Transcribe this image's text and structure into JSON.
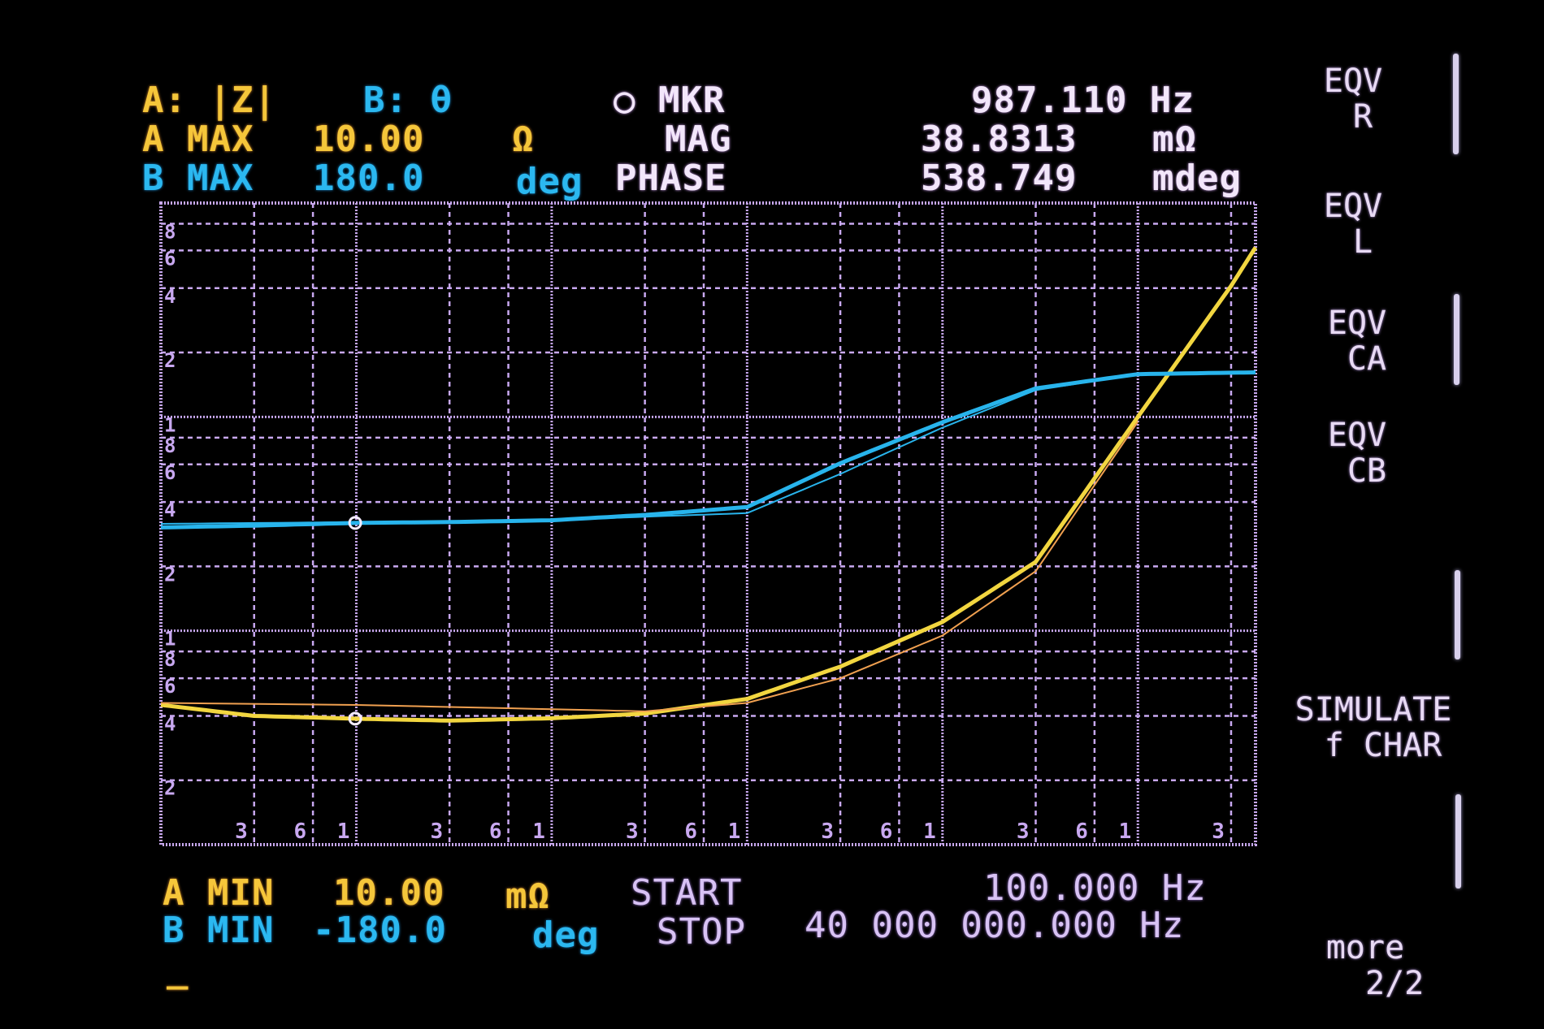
{
  "header": {
    "trace_a": "A: |Z|",
    "trace_b": "B: θ",
    "marker_label": "○ MKR",
    "marker_freq": "987.110 Hz",
    "a_max_label": "A MAX",
    "a_max_value": "10.00",
    "a_max_unit": "Ω",
    "mag_label": "MAG",
    "mag_value": "38.8313",
    "mag_unit": "mΩ",
    "b_max_label": "B MAX",
    "b_max_value": "180.0",
    "b_max_unit": "deg",
    "phase_label": "PHASE",
    "phase_value": "538.749",
    "phase_unit": "mdeg"
  },
  "footer": {
    "a_min_label": "A MIN",
    "a_min_value": "10.00",
    "a_min_unit": "mΩ",
    "start_label": "START",
    "start_value": "100.000 Hz",
    "b_min_label": "B MIN",
    "b_min_value": "-180.0",
    "b_min_unit": "deg",
    "stop_label": "STOP",
    "stop_value": "40 000 000.000 Hz",
    "cursor": "_"
  },
  "softkeys": [
    {
      "label": "EQV\n R"
    },
    {
      "label": "EQV\n L"
    },
    {
      "label": "EQV\n CA"
    },
    {
      "label": "EQV\n CB"
    },
    {
      "label": "SIMULATE\n f CHAR"
    },
    {
      "label": "more\n   2/2"
    }
  ],
  "colors": {
    "trace_a": "#f2d640",
    "trace_a_ref": "#f0a050",
    "trace_b": "#28b4ec",
    "grid": "#c8a8f0",
    "text": "#f2e6fa"
  },
  "chart_data": {
    "type": "line",
    "x_scale": "log",
    "xlim": [
      100,
      40000000
    ],
    "x_tick_labels": [
      {
        "f": 300,
        "label": "3"
      },
      {
        "f": 600,
        "label": "6"
      },
      {
        "f": 1000,
        "label": "1"
      },
      {
        "f": 3000,
        "label": "3"
      },
      {
        "f": 6000,
        "label": "6"
      },
      {
        "f": 10000,
        "label": "1"
      },
      {
        "f": 30000,
        "label": "3"
      },
      {
        "f": 60000,
        "label": "6"
      },
      {
        "f": 100000,
        "label": "1"
      },
      {
        "f": 300000,
        "label": "3"
      },
      {
        "f": 600000,
        "label": "6"
      },
      {
        "f": 1000000,
        "label": "1"
      },
      {
        "f": 3000000,
        "label": "3"
      },
      {
        "f": 6000000,
        "label": "6"
      },
      {
        "f": 10000000,
        "label": "1"
      },
      {
        "f": 30000000,
        "label": "3"
      }
    ],
    "a_axis": {
      "scale": "log",
      "ylim": [
        0.01,
        10
      ],
      "unit": "Ω"
    },
    "a_tick_labels": [
      {
        "v": 8,
        "label": "8"
      },
      {
        "v": 6,
        "label": "6"
      },
      {
        "v": 4,
        "label": "4"
      },
      {
        "v": 2,
        "label": "2"
      },
      {
        "v": 1,
        "label": "1"
      },
      {
        "v": 0.8,
        "label": "8"
      },
      {
        "v": 0.6,
        "label": "6"
      },
      {
        "v": 0.4,
        "label": "4"
      },
      {
        "v": 0.2,
        "label": "2"
      },
      {
        "v": 0.1,
        "label": "1"
      },
      {
        "v": 0.08,
        "label": "8"
      },
      {
        "v": 0.06,
        "label": "6"
      },
      {
        "v": 0.04,
        "label": "4"
      },
      {
        "v": 0.02,
        "label": "2"
      }
    ],
    "b_axis": {
      "scale": "linear",
      "ylim": [
        -180,
        180
      ],
      "unit": "deg"
    },
    "grid": true,
    "series": [
      {
        "trace": "A",
        "quantity": "|Z|",
        "unit": "Ω",
        "x": [
          100,
          300,
          1000,
          3000,
          10000,
          30000,
          100000,
          300000,
          1000000,
          3000000,
          10000000,
          30000000,
          40000000
        ],
        "values": [
          0.045,
          0.04,
          0.0388,
          0.038,
          0.039,
          0.041,
          0.048,
          0.068,
          0.11,
          0.21,
          1.0,
          4.1,
          6.2
        ]
      },
      {
        "trace": "A-ref",
        "quantity": "|Z|",
        "unit": "Ω",
        "x": [
          100,
          1000,
          10000,
          30000,
          100000,
          300000,
          1000000,
          3000000,
          10000000
        ],
        "values": [
          0.046,
          0.045,
          0.043,
          0.042,
          0.046,
          0.06,
          0.095,
          0.19,
          0.95
        ]
      },
      {
        "trace": "B",
        "quantity": "θ",
        "unit": "deg",
        "x": [
          100,
          300,
          1000,
          3000,
          10000,
          30000,
          100000,
          300000,
          1000000,
          3000000,
          10000000,
          40000000
        ],
        "values": [
          -2,
          -1,
          0.54,
          1,
          2,
          5,
          9.4,
          34,
          57,
          76,
          84,
          85
        ]
      },
      {
        "trace": "B-ref",
        "quantity": "θ",
        "unit": "deg",
        "x": [
          100,
          1000,
          10000,
          30000,
          100000,
          300000,
          1000000,
          3000000,
          10000000,
          40000000
        ],
        "values": [
          0,
          1,
          2,
          4,
          6,
          28,
          54,
          75,
          84,
          85
        ]
      }
    ],
    "marker": {
      "f": 987.11,
      "a": 0.0388313,
      "b": 0.538749
    }
  }
}
